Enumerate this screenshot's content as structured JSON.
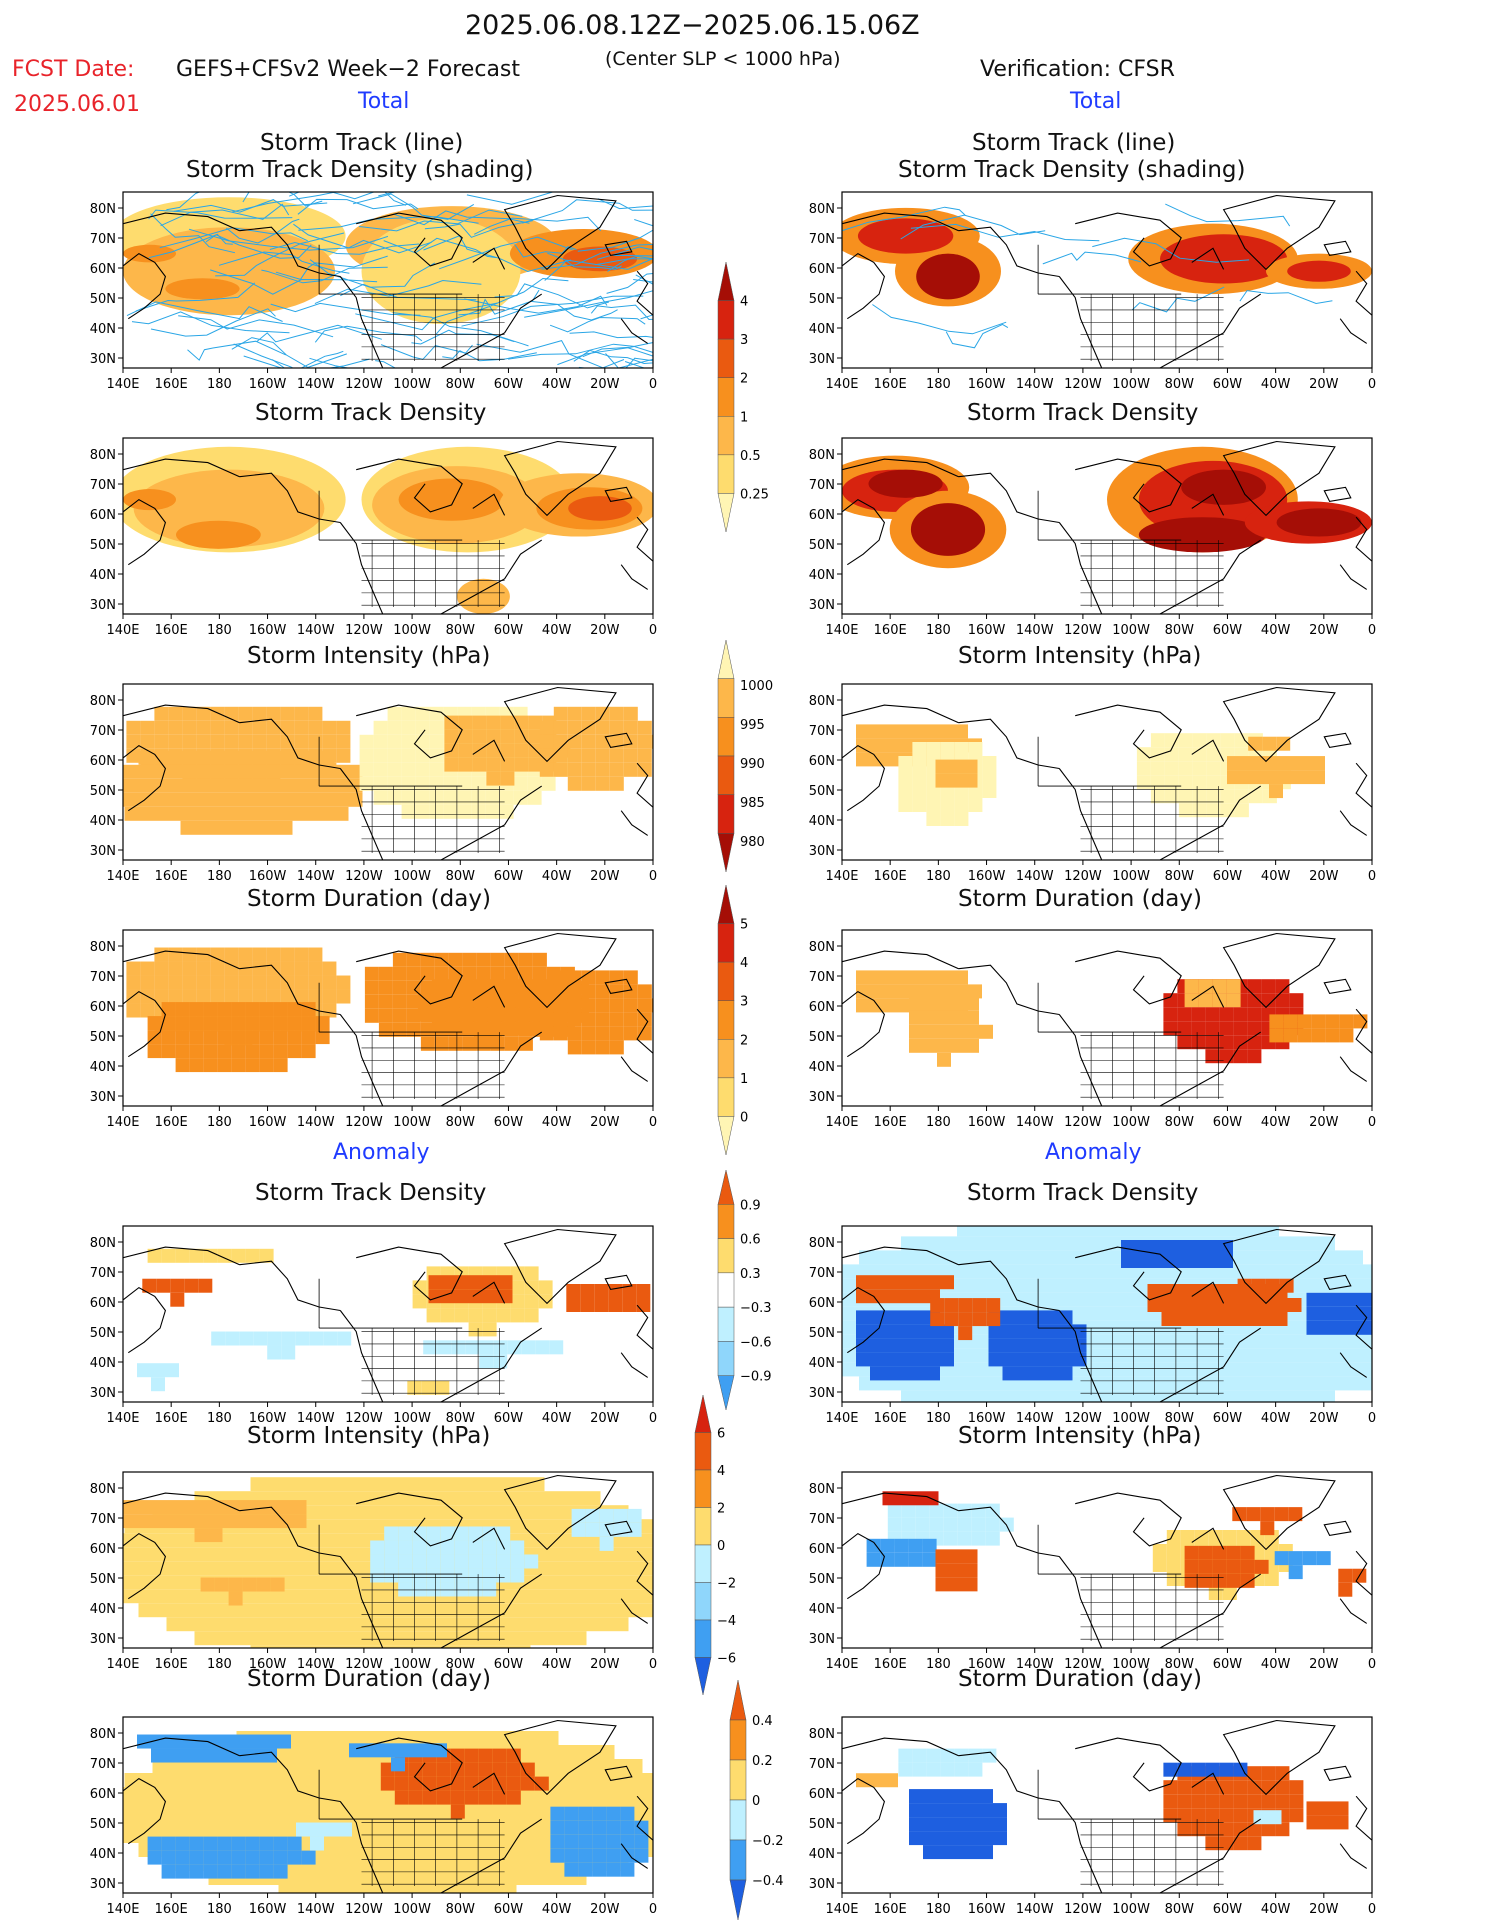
{
  "header": {
    "period": "2025.06.08.12Z−2025.06.15.06Z",
    "fcst_label": "FCST Date:",
    "fcst_date": "2025.06.01",
    "product": "GEFS+CFSv2 Week−2 Forecast",
    "criterion": "(Center SLP < 1000 hPa)",
    "verification": "Verification: CFSR"
  },
  "sections": {
    "total_left": "Total",
    "total_right": "Total",
    "anomaly_left": "Anomaly",
    "anomaly_right": "Anomaly"
  },
  "panel_titles": {
    "track_line": "Storm Track (line)",
    "track_shading": "Storm Track Density (shading)",
    "density": "Storm Track Density",
    "intensity": "Storm Intensity (hPa)",
    "duration": "Storm Duration (day)"
  },
  "axes": {
    "lon_labels": [
      "140E",
      "160E",
      "180",
      "160W",
      "140W",
      "120W",
      "100W",
      "80W",
      "60W",
      "40W",
      "20W",
      "0"
    ],
    "lat_labels": [
      "80N",
      "70N",
      "60N",
      "50N",
      "40N",
      "30N"
    ]
  },
  "colorbars": {
    "track_density_total": [
      "4",
      "3",
      "2",
      "1",
      "0.5",
      "0.25"
    ],
    "intensity_total": [
      "1000",
      "995",
      "990",
      "985",
      "980"
    ],
    "duration_total": [
      "5",
      "4",
      "3",
      "2",
      "1",
      "0"
    ],
    "density_anom": [
      "0.9",
      "0.6",
      "0.3",
      "−0.3",
      "−0.6",
      "−0.9"
    ],
    "intensity_anom": [
      "6",
      "4",
      "2",
      "0",
      "−2",
      "−4",
      "−6"
    ],
    "duration_anom": [
      "0.4",
      "0.2",
      "0",
      "−0.2",
      "−0.4"
    ]
  },
  "colors": {
    "pale_yellow": "#fff5b4",
    "yellow": "#fedc6e",
    "light_orange": "#fdb74a",
    "orange": "#f7901e",
    "dark_orange": "#ea5a10",
    "red": "#d7230f",
    "dark_red": "#a50e06",
    "light_blue": "#bff0ff",
    "mid_blue": "#8fd6fb",
    "blue": "#3f9ff2",
    "dark_blue": "#1e5fe0",
    "track_line": "#2aa6e6"
  }
}
